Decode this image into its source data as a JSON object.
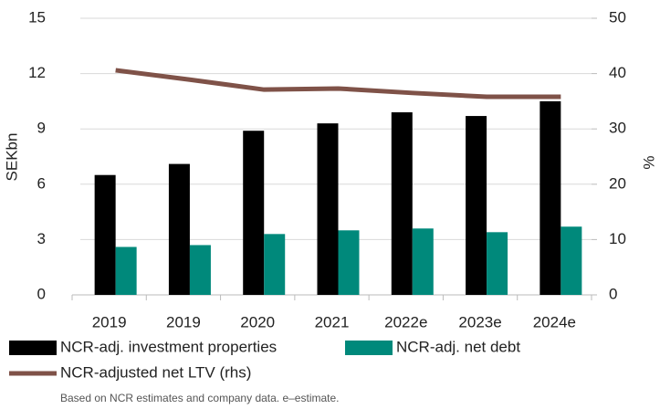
{
  "chart_data": {
    "type": "bar",
    "categories": [
      "2019",
      "2019",
      "2020",
      "2021",
      "2022e",
      "2023e",
      "2024e"
    ],
    "series": [
      {
        "name": "NCR-adj. investment properties",
        "color": "#000000",
        "values": [
          6.5,
          7.1,
          8.9,
          9.3,
          9.9,
          9.7,
          10.5
        ]
      },
      {
        "name": "NCR-adj. net debt",
        "color": "#00897b",
        "values": [
          2.6,
          2.7,
          3.3,
          3.5,
          3.6,
          3.4,
          3.7
        ]
      },
      {
        "name": "NCR-adjusted net LTV (rhs)",
        "type": "line",
        "axis": "y2",
        "color": "#7f5248",
        "values": [
          40.6,
          38.9,
          37.1,
          37.3,
          36.5,
          35.8,
          35.8
        ]
      }
    ],
    "ylabel": "SEKbn",
    "y2label": "%",
    "ylim": [
      0,
      15
    ],
    "yticks": [
      0,
      3,
      6,
      9,
      12,
      15
    ],
    "y2lim": [
      0,
      50
    ],
    "y2ticks": [
      0,
      10,
      20,
      30,
      40,
      50
    ],
    "grid": true,
    "note": "Based on NCR estimates and company data. e–estimate."
  }
}
